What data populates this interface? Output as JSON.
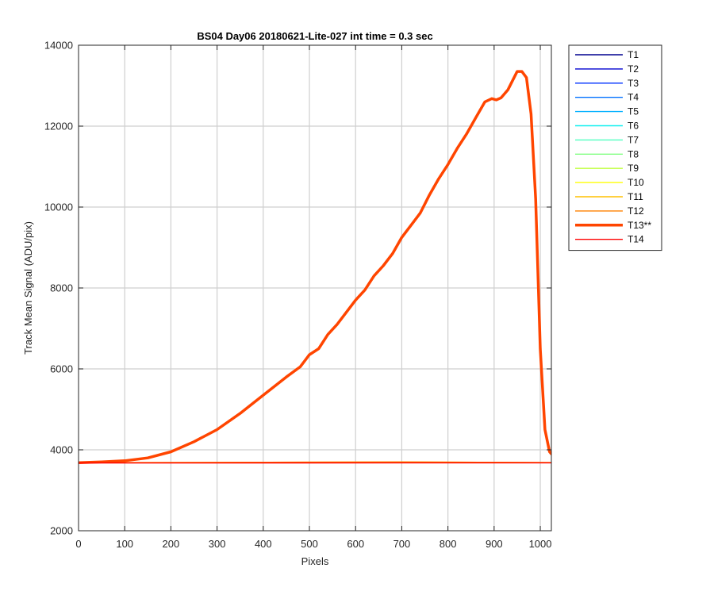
{
  "chart_data": {
    "type": "line",
    "title": "BS04 Day06 20180621-Lite-027 int time = 0.3 sec",
    "xlabel": "Pixels",
    "ylabel": "Track Mean Signal (ADU/pix)",
    "xlim": [
      0,
      1024
    ],
    "ylim": [
      2000,
      14000
    ],
    "xticks": [
      0,
      100,
      200,
      300,
      400,
      500,
      600,
      700,
      800,
      900,
      1000
    ],
    "yticks": [
      2000,
      4000,
      6000,
      8000,
      10000,
      12000,
      14000
    ],
    "grid": true,
    "legend_position": "outside-right",
    "series": [
      {
        "name": "T1",
        "color": "#00008f",
        "x": [
          0,
          1024
        ],
        "y": [
          3680,
          3680
        ]
      },
      {
        "name": "T2",
        "color": "#0000d0",
        "x": [
          0,
          1024
        ],
        "y": [
          3680,
          3680
        ]
      },
      {
        "name": "T3",
        "color": "#0030ff",
        "x": [
          0,
          1024
        ],
        "y": [
          3680,
          3680
        ]
      },
      {
        "name": "T4",
        "color": "#0070ff",
        "x": [
          0,
          1024
        ],
        "y": [
          3680,
          3680
        ]
      },
      {
        "name": "T5",
        "color": "#00b0ff",
        "x": [
          0,
          1024
        ],
        "y": [
          3680,
          3680
        ]
      },
      {
        "name": "T6",
        "color": "#10f0f0",
        "x": [
          0,
          1024
        ],
        "y": [
          3680,
          3680
        ]
      },
      {
        "name": "T7",
        "color": "#50ffc0",
        "x": [
          0,
          1024
        ],
        "y": [
          3680,
          3680
        ]
      },
      {
        "name": "T8",
        "color": "#80ff80",
        "x": [
          0,
          1024
        ],
        "y": [
          3680,
          3680
        ]
      },
      {
        "name": "T9",
        "color": "#c0ff40",
        "x": [
          0,
          1024
        ],
        "y": [
          3680,
          3680
        ]
      },
      {
        "name": "T10",
        "color": "#ffff00",
        "x": [
          0,
          1024
        ],
        "y": [
          3680,
          3680
        ]
      },
      {
        "name": "T11",
        "color": "#ffc000",
        "x": [
          0,
          700,
          1024
        ],
        "y": [
          3680,
          3700,
          3685
        ]
      },
      {
        "name": "T12",
        "color": "#ff8000",
        "x": [
          0,
          700,
          1024
        ],
        "y": [
          3680,
          3700,
          3685
        ]
      },
      {
        "name": "T13**",
        "color": "#ff4500",
        "thick": true,
        "x": [
          0,
          50,
          100,
          150,
          200,
          250,
          300,
          350,
          400,
          450,
          480,
          500,
          520,
          540,
          560,
          580,
          600,
          620,
          640,
          660,
          680,
          700,
          720,
          740,
          760,
          780,
          800,
          820,
          840,
          860,
          880,
          895,
          905,
          915,
          930,
          950,
          960,
          970,
          980,
          990,
          1000,
          1010,
          1020,
          1024
        ],
        "y": [
          3680,
          3700,
          3730,
          3800,
          3950,
          4200,
          4500,
          4900,
          5350,
          5800,
          6050,
          6350,
          6500,
          6850,
          7100,
          7400,
          7700,
          7950,
          8300,
          8550,
          8850,
          9250,
          9550,
          9850,
          10300,
          10700,
          11050,
          11450,
          11800,
          12200,
          12600,
          12680,
          12650,
          12700,
          12900,
          13350,
          13350,
          13200,
          12300,
          10200,
          6500,
          4500,
          3950,
          3900
        ]
      },
      {
        "name": "T14",
        "color": "#ff0000",
        "x": [
          0,
          1024
        ],
        "y": [
          3675,
          3678
        ]
      }
    ]
  }
}
